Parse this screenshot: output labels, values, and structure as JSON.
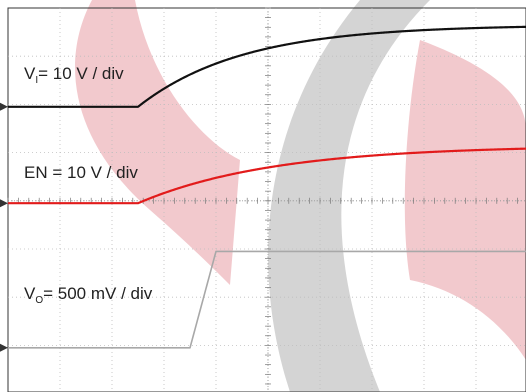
{
  "chart_data": {
    "type": "line",
    "grid": true,
    "divisions": {
      "horizontal": 10,
      "vertical": 8
    },
    "series": [
      {
        "key": "vi",
        "label_main": "V",
        "label_sub": "I",
        "label_rest": "= 10 V / div",
        "color": "#111111",
        "baseline_div": 5.95,
        "step_time_div": 2.5,
        "final_div": 7.65,
        "tau_div": 2.0,
        "kind": "exp"
      },
      {
        "key": "en",
        "label_main": "EN = 10 V / div",
        "color": "#e21b1b",
        "baseline_div": 3.95,
        "step_time_div": 2.5,
        "final_div": 5.15,
        "tau_div": 2.6,
        "kind": "exp"
      },
      {
        "key": "vo",
        "label_main": "V",
        "label_sub": "O",
        "label_rest": "= 500 mV / div",
        "color": "#a8a8a8",
        "baseline_div": 0.95,
        "step_time_div": 3.5,
        "final_div": 2.95,
        "ramp_div": 0.5,
        "kind": "ramp"
      }
    ]
  },
  "watermark": {
    "red": "#d9656f",
    "grey": "#a0a0a0"
  }
}
